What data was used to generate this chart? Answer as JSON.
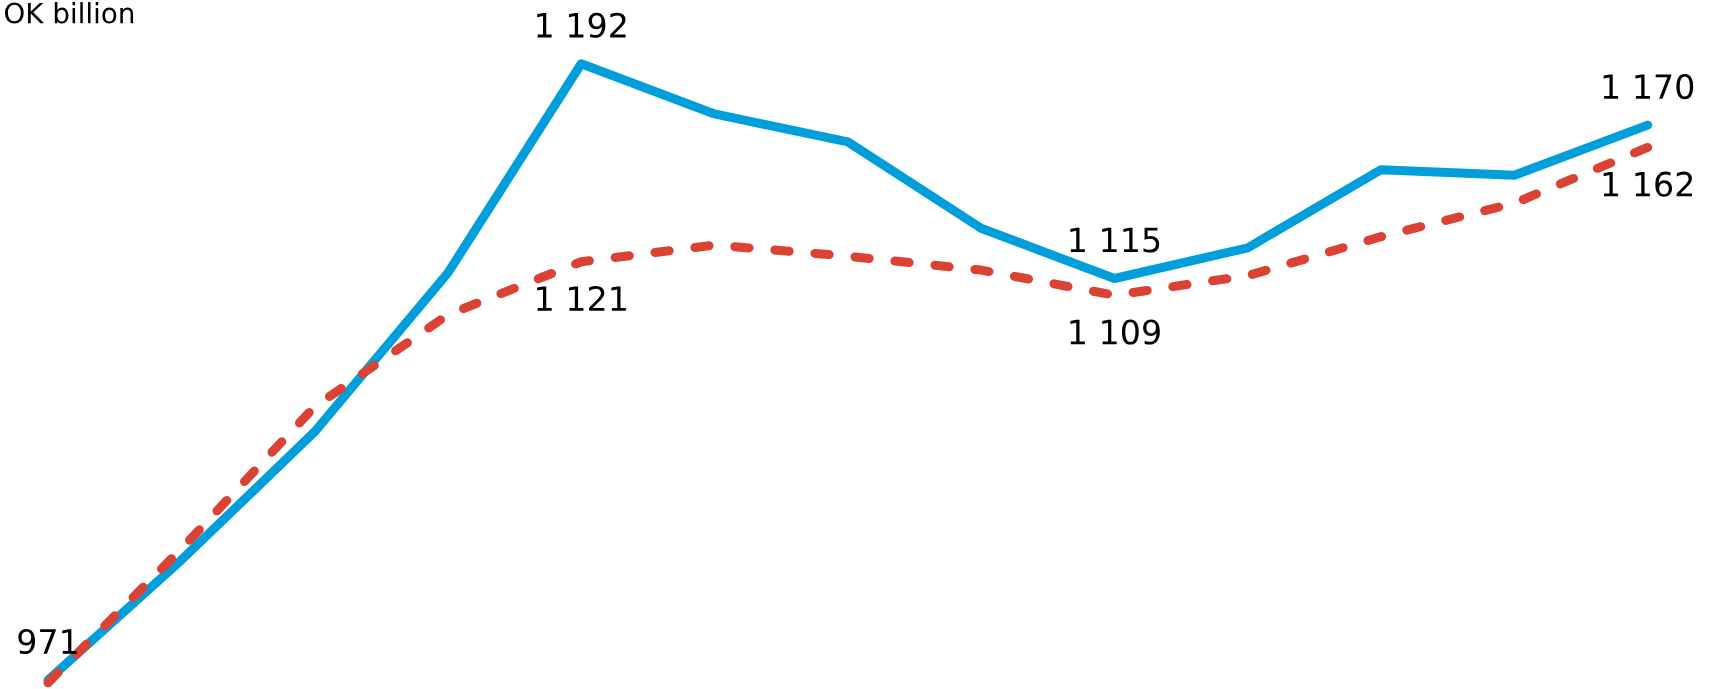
{
  "chart_data": {
    "type": "line",
    "ylabel": "OK billion",
    "categories": [
      null,
      null,
      null,
      null,
      null,
      null,
      null,
      null,
      null,
      null,
      null,
      null,
      null
    ],
    "tick_labels": false,
    "series": [
      {
        "color": "#009fdb",
        "line_style": "solid",
        "values": [
          971,
          1014,
          1060,
          1117,
          1192,
          1174,
          1164,
          1133,
          1115,
          1126,
          1154,
          1152,
          1170
        ],
        "value_labels": [
          "971",
          null,
          null,
          null,
          "1 192",
          null,
          null,
          null,
          "1 115",
          null,
          null,
          null,
          "1 170"
        ]
      },
      {
        "color": "#db4234",
        "line_style": "dashed",
        "values": [
          970,
          1018,
          1069,
          1102,
          1121,
          1127,
          1123,
          1118,
          1109,
          1116,
          1130,
          1142,
          1162
        ],
        "value_labels": [
          null,
          null,
          null,
          null,
          "1 121",
          null,
          null,
          null,
          "1 109",
          null,
          null,
          null,
          "1 162"
        ]
      }
    ]
  }
}
